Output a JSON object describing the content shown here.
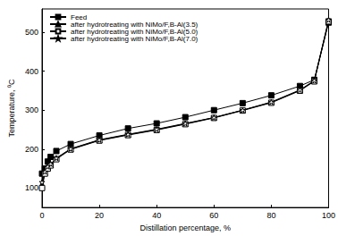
{
  "chart_data": {
    "type": "line",
    "xlabel": "Distillation percentage, %",
    "ylabel": "Temperature, ⁰C",
    "x": [
      0,
      1,
      2,
      3,
      5,
      10,
      20,
      30,
      40,
      50,
      60,
      70,
      80,
      90,
      95,
      100
    ],
    "series": [
      {
        "name": "Feed",
        "color": "#000000",
        "marker": "square",
        "values": [
          137,
          150,
          168,
          180,
          195,
          213,
          235,
          253,
          266,
          282,
          300,
          318,
          338,
          362,
          378,
          525
        ]
      },
      {
        "name": "after hydrotreating with NiMo/F,B-Al(3.5)",
        "color": "#000000",
        "marker": "triangle",
        "values": [
          107,
          140,
          152,
          160,
          176,
          200,
          223,
          237,
          250,
          265,
          281,
          300,
          320,
          351,
          375,
          530
        ]
      },
      {
        "name": "after hydrotreating with NiMo/F,B-Al(5.0)",
        "color": "#000000",
        "marker": "square-open",
        "values": [
          100,
          137,
          150,
          158,
          174,
          199,
          222,
          236,
          249,
          264,
          280,
          299,
          319,
          350,
          374,
          528
        ]
      },
      {
        "name": "after hydrotreating with NiMo/F,B-Al(7.0)",
        "color": "#000000",
        "marker": "star-open",
        "values": [
          115,
          142,
          155,
          162,
          177,
          201,
          224,
          238,
          251,
          266,
          281,
          300,
          321,
          352,
          376,
          532
        ]
      }
    ],
    "xlim": [
      0,
      100
    ],
    "xticks": [
      0,
      20,
      40,
      60,
      80,
      100
    ],
    "ylim": [
      50,
      560
    ],
    "yticks": [
      100,
      200,
      300,
      400,
      500
    ],
    "legend": "upper left",
    "grid": false
  }
}
